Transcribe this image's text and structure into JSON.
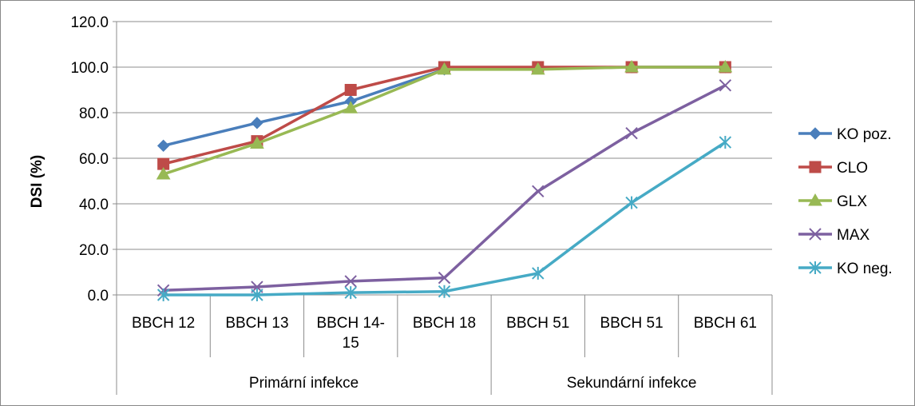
{
  "chart_data": {
    "type": "line",
    "title": "",
    "ylabel": "DSI (%)",
    "ylim": [
      0,
      120
    ],
    "yticks": [
      0,
      20,
      40,
      60,
      80,
      100,
      120
    ],
    "ytick_labels": [
      "0.0",
      "20.0",
      "40.0",
      "60.0",
      "80.0",
      "100.0",
      "120.0"
    ],
    "grid": true,
    "legend_position": "right",
    "categories": [
      "BBCH 12",
      "BBCH 13",
      "BBCH 14-15",
      "BBCH 18",
      "BBCH 51",
      "BBCH 51",
      "BBCH 61"
    ],
    "category_labels": [
      [
        "BBCH 12"
      ],
      [
        "BBCH 13"
      ],
      [
        "BBCH 14-",
        "15"
      ],
      [
        "BBCH 18"
      ],
      [
        "BBCH 51"
      ],
      [
        "BBCH 51"
      ],
      [
        "BBCH 61"
      ]
    ],
    "groups": [
      {
        "label": "Primární infekce",
        "span": [
          0,
          3
        ]
      },
      {
        "label": "Sekundární infekce",
        "span": [
          4,
          6
        ]
      }
    ],
    "series": [
      {
        "name": "KO poz.",
        "color": "#4A7EBB",
        "marker": "diamond",
        "values": [
          65.5,
          75.5,
          85.0,
          99.0,
          99.5,
          100.0,
          100.0
        ]
      },
      {
        "name": "CLO",
        "color": "#BE4B48",
        "marker": "square",
        "values": [
          57.5,
          67.5,
          90.0,
          100.0,
          100.0,
          100.0,
          100.0
        ]
      },
      {
        "name": "GLX",
        "color": "#98B954",
        "marker": "triangle",
        "values": [
          53.0,
          66.5,
          82.0,
          99.0,
          99.0,
          100.0,
          100.0
        ]
      },
      {
        "name": "MAX",
        "color": "#7D60A0",
        "marker": "x",
        "values": [
          2.0,
          3.5,
          6.0,
          7.5,
          45.5,
          71.0,
          92.0
        ]
      },
      {
        "name": "KO neg.",
        "color": "#46AAC5",
        "marker": "star",
        "values": [
          0.0,
          0.0,
          1.0,
          1.5,
          9.5,
          40.5,
          67.0
        ]
      }
    ]
  }
}
